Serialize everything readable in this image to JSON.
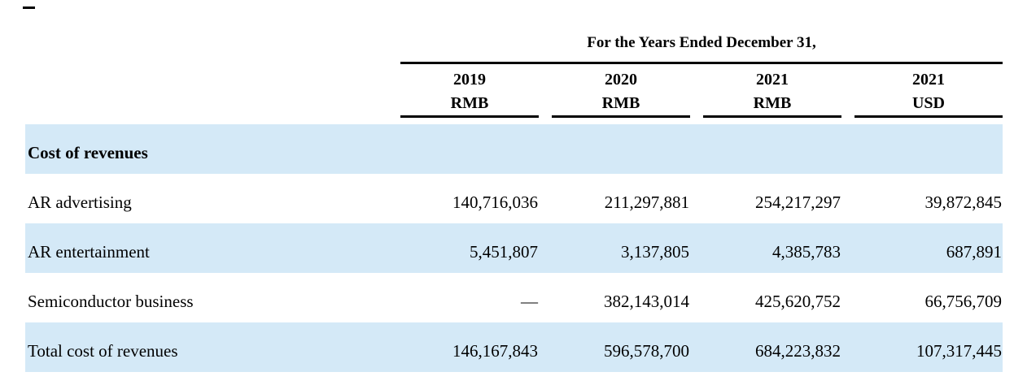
{
  "page": {
    "top_dash": ""
  },
  "table": {
    "title": "For the Years Ended December 31,",
    "columns": [
      {
        "year": "2019",
        "currency": "RMB"
      },
      {
        "year": "2020",
        "currency": "RMB"
      },
      {
        "year": "2021",
        "currency": "RMB"
      },
      {
        "year": "2021",
        "currency": "USD"
      }
    ],
    "rows": [
      {
        "label": "Cost of revenues",
        "values": [
          "",
          "",
          "",
          ""
        ]
      },
      {
        "label": "AR advertising",
        "values": [
          "140,716,036",
          "211,297,881",
          "254,217,297",
          "39,872,845"
        ]
      },
      {
        "label": "AR entertainment",
        "values": [
          "5,451,807",
          "3,137,805",
          "4,385,783",
          "687,891"
        ]
      },
      {
        "label": "Semiconductor business",
        "values": [
          "—",
          "382,143,014",
          "425,620,752",
          "66,756,709"
        ]
      },
      {
        "label": "Total cost of revenues",
        "values": [
          "146,167,843",
          "596,578,700",
          "684,223,832",
          "107,317,445"
        ]
      }
    ],
    "colors": {
      "highlight_row": "#d4e9f7",
      "rule": "#000000",
      "text": "#000000"
    }
  }
}
